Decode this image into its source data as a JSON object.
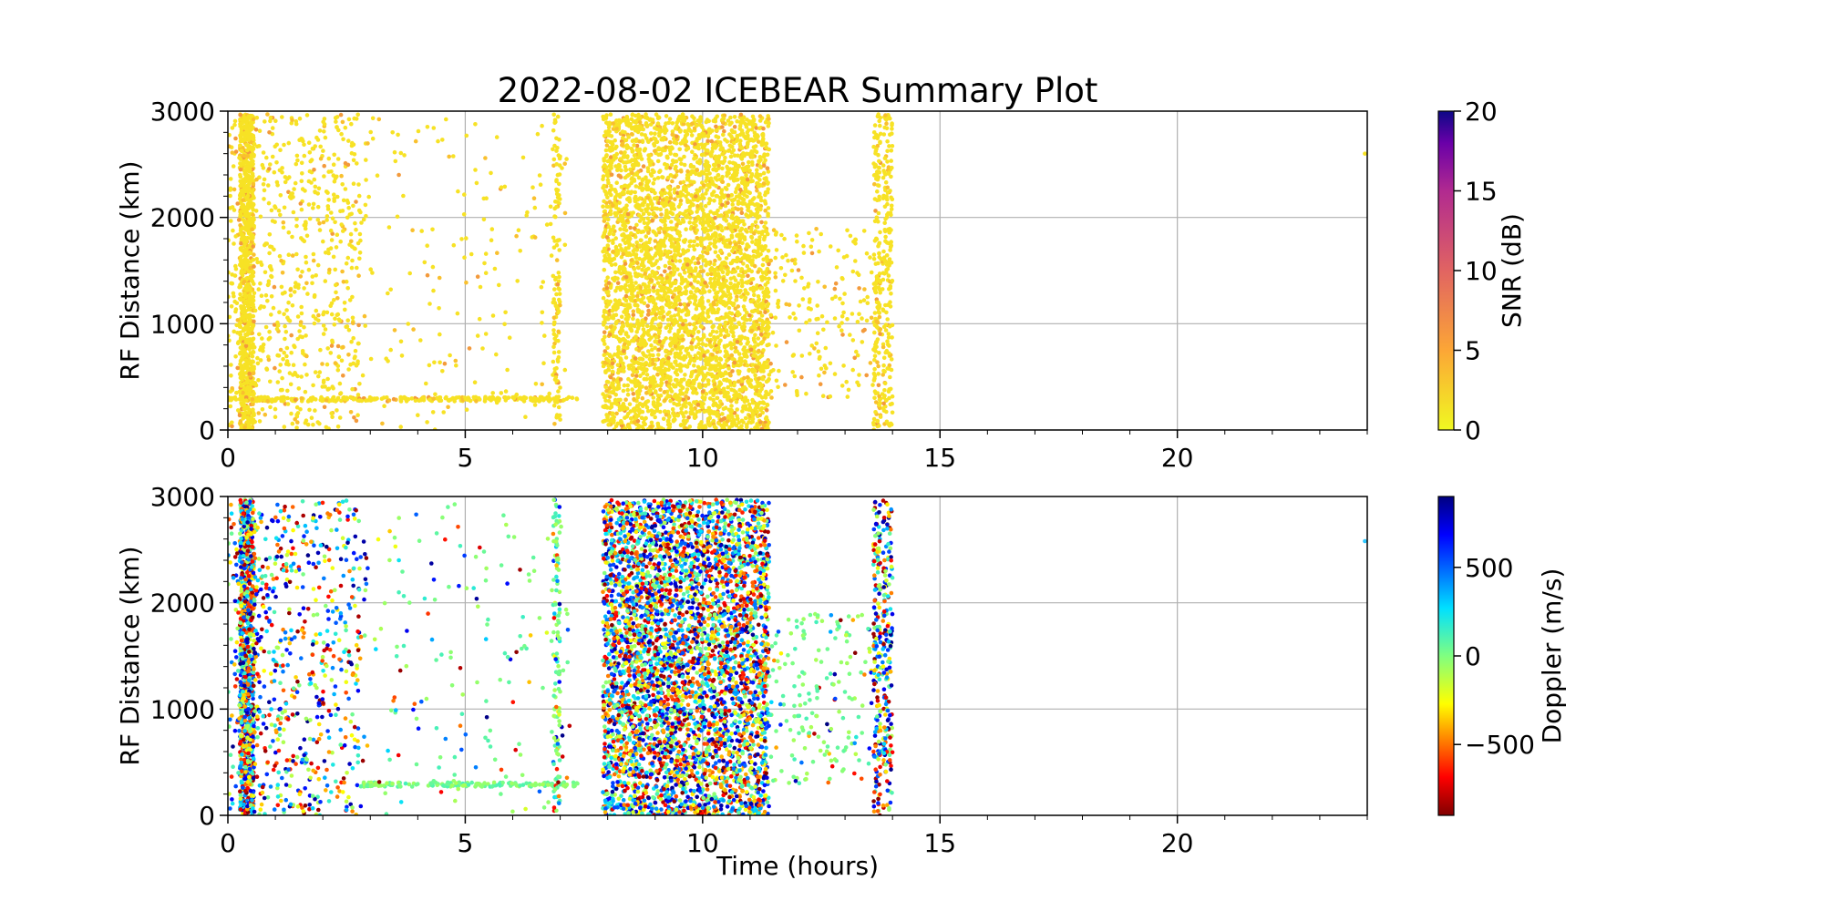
{
  "chart_data": [
    {
      "type": "scatter",
      "title": "2022-08-02 ICEBEAR Summary Plot",
      "xlabel": "",
      "ylabel": "RF Distance (km)",
      "xlim": [
        0,
        24
      ],
      "ylim": [
        0,
        3000
      ],
      "xticks": [
        0,
        5,
        10,
        15,
        20
      ],
      "yticks": [
        0,
        1000,
        2000,
        3000
      ],
      "grid": true,
      "color_by": "SNR (dB)",
      "colorbar": {
        "label": "SNR (dB)",
        "range": [
          0,
          20
        ],
        "ticks": [
          0,
          5,
          10,
          15,
          20
        ],
        "colormap": "plasma_r"
      },
      "clusters": [
        {
          "x": [
            0.25,
            0.55
          ],
          "y": [
            0,
            2970
          ],
          "n": 900
        },
        {
          "x": [
            0,
            2.8
          ],
          "y": [
            0,
            2970
          ],
          "n": 700
        },
        {
          "x": [
            0,
            2.8
          ],
          "y": [
            270,
            310
          ],
          "n": 120
        },
        {
          "x": [
            2.8,
            7.4
          ],
          "y": [
            270,
            310
          ],
          "n": 160
        },
        {
          "x": [
            2.8,
            7.2
          ],
          "y": [
            0,
            2970
          ],
          "n": 180
        },
        {
          "x": [
            6.85,
            7.0
          ],
          "y": [
            0,
            2970
          ],
          "n": 120
        },
        {
          "x": [
            7.9,
            11.4
          ],
          "y": [
            0,
            2970
          ],
          "n": 4200
        },
        {
          "x": [
            11.4,
            14.0
          ],
          "y": [
            300,
            1900
          ],
          "n": 220
        },
        {
          "x": [
            13.6,
            13.75
          ],
          "y": [
            0,
            2970
          ],
          "n": 150
        },
        {
          "x": [
            13.8,
            14.0
          ],
          "y": [
            0,
            2970
          ],
          "n": 150
        }
      ]
    },
    {
      "type": "scatter",
      "title": "",
      "xlabel": "Time (hours)",
      "ylabel": "RF Distance (km)",
      "xlim": [
        0,
        24
      ],
      "ylim": [
        0,
        3000
      ],
      "xticks": [
        0,
        5,
        10,
        15,
        20
      ],
      "yticks": [
        0,
        1000,
        2000,
        3000
      ],
      "grid": true,
      "color_by": "Doppler (m/s)",
      "colorbar": {
        "label": "Doppler (m/s)",
        "range": [
          -900,
          900
        ],
        "ticks": [
          -500,
          0,
          500
        ],
        "tick_labels": [
          "−500",
          "0",
          "500"
        ],
        "colormap": "jet_r"
      },
      "clusters": [
        {
          "x": [
            0.25,
            0.55
          ],
          "y": [
            0,
            2970
          ],
          "n": 900
        },
        {
          "x": [
            0,
            2.8
          ],
          "y": [
            0,
            2970
          ],
          "n": 700
        },
        {
          "x": [
            2.8,
            7.4
          ],
          "y": [
            270,
            310
          ],
          "n": 160
        },
        {
          "x": [
            2.8,
            7.2
          ],
          "y": [
            0,
            2970
          ],
          "n": 180
        },
        {
          "x": [
            6.85,
            7.0
          ],
          "y": [
            0,
            2970
          ],
          "n": 120
        },
        {
          "x": [
            7.9,
            11.4
          ],
          "y": [
            0,
            2970
          ],
          "n": 4200
        },
        {
          "x": [
            11.4,
            14.0
          ],
          "y": [
            300,
            1900
          ],
          "n": 220
        },
        {
          "x": [
            13.6,
            13.75
          ],
          "y": [
            0,
            2970
          ],
          "n": 150
        },
        {
          "x": [
            13.8,
            14.0
          ],
          "y": [
            0,
            2970
          ],
          "n": 150
        }
      ]
    }
  ]
}
